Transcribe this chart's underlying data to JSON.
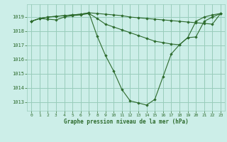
{
  "background_color": "#cceee8",
  "grid_color": "#99ccbb",
  "line_color": "#2d6b2d",
  "marker_color": "#2d6b2d",
  "xlabel": "Graphe pression niveau de la mer (hPa)",
  "ylim": [
    1012.4,
    1019.9
  ],
  "yticks": [
    1013,
    1014,
    1015,
    1016,
    1017,
    1018,
    1019
  ],
  "xlim": [
    -0.5,
    23.5
  ],
  "xticks": [
    0,
    1,
    2,
    3,
    4,
    5,
    6,
    7,
    8,
    9,
    10,
    11,
    12,
    13,
    14,
    15,
    16,
    17,
    18,
    19,
    20,
    21,
    22,
    23
  ],
  "series": [
    {
      "x": [
        0,
        1,
        2,
        3,
        4,
        5,
        6,
        7,
        8,
        9,
        10,
        11,
        12,
        13,
        14,
        15,
        16,
        17,
        18,
        19,
        20,
        21,
        22,
        23
      ],
      "y": [
        1018.7,
        1018.9,
        1019.0,
        1019.05,
        1019.1,
        1019.15,
        1019.2,
        1019.3,
        1019.25,
        1019.2,
        1019.15,
        1019.1,
        1019.0,
        1018.95,
        1018.9,
        1018.85,
        1018.8,
        1018.75,
        1018.7,
        1018.65,
        1018.6,
        1018.55,
        1018.5,
        1019.25
      ]
    },
    {
      "x": [
        0,
        1,
        2,
        3,
        4,
        5,
        6,
        7,
        8,
        9,
        10,
        11,
        12,
        13,
        14,
        15,
        16,
        17,
        18,
        19,
        20,
        21,
        22,
        23
      ],
      "y": [
        1018.7,
        1018.9,
        1018.85,
        1018.8,
        1019.0,
        1019.1,
        1019.15,
        1019.25,
        1018.9,
        1018.5,
        1018.3,
        1018.1,
        1017.9,
        1017.7,
        1017.5,
        1017.3,
        1017.2,
        1017.1,
        1017.05,
        1017.55,
        1017.6,
        1018.7,
        1019.0,
        1019.25
      ]
    },
    {
      "x": [
        0,
        1,
        2,
        3,
        4,
        5,
        6,
        7,
        8,
        9,
        10,
        11,
        12,
        13,
        14,
        15,
        16,
        17,
        18,
        19,
        20,
        21,
        22,
        23
      ],
      "y": [
        1018.7,
        1018.9,
        1019.0,
        1019.05,
        1019.1,
        1019.15,
        1019.2,
        1019.3,
        1017.65,
        1016.3,
        1015.2,
        1013.9,
        1013.1,
        1012.95,
        1012.8,
        1013.2,
        1014.8,
        1016.4,
        1017.05,
        1017.55,
        1018.7,
        1019.0,
        1019.15,
        1019.25
      ]
    }
  ]
}
